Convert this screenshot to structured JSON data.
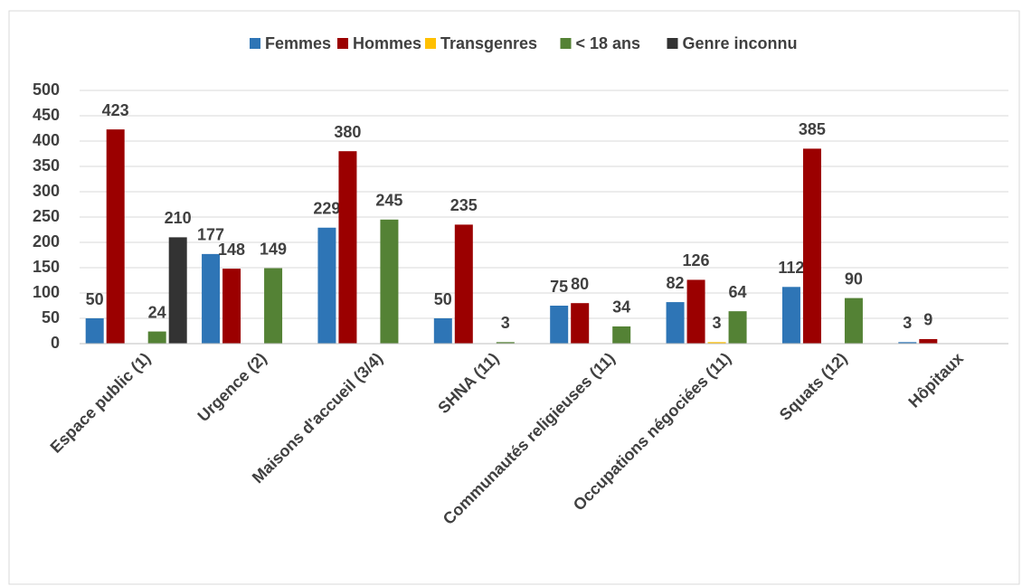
{
  "chart_data": {
    "type": "bar",
    "categories": [
      "Espace public (1)",
      "Urgence (2)",
      "Maisons d'accueil (3/4)",
      "SHNA (11)",
      "Communautés religieuses (11)",
      "Occupations négociées (11)",
      "Squats (12)",
      "Hôpitaux"
    ],
    "series": [
      {
        "name": "Femmes",
        "color": "#2e75b6",
        "values": [
          50,
          177,
          229,
          50,
          75,
          82,
          112,
          3
        ]
      },
      {
        "name": "Hommes",
        "color": "#9b0000",
        "values": [
          423,
          148,
          380,
          235,
          80,
          126,
          385,
          9
        ]
      },
      {
        "name": "Transgenres",
        "color": "#ffc000",
        "values": [
          null,
          null,
          null,
          null,
          null,
          3,
          null,
          null
        ]
      },
      {
        "name": "< 18 ans",
        "color": "#548235",
        "values": [
          24,
          149,
          245,
          3,
          34,
          64,
          90,
          null
        ]
      },
      {
        "name": "Genre inconnu",
        "color": "#333333",
        "values": [
          210,
          null,
          null,
          null,
          null,
          null,
          null,
          null
        ]
      }
    ],
    "ylim": [
      0,
      500
    ],
    "yticks": [
      0,
      50,
      100,
      150,
      200,
      250,
      300,
      350,
      400,
      450,
      500
    ],
    "grid": true,
    "legend": "top"
  }
}
